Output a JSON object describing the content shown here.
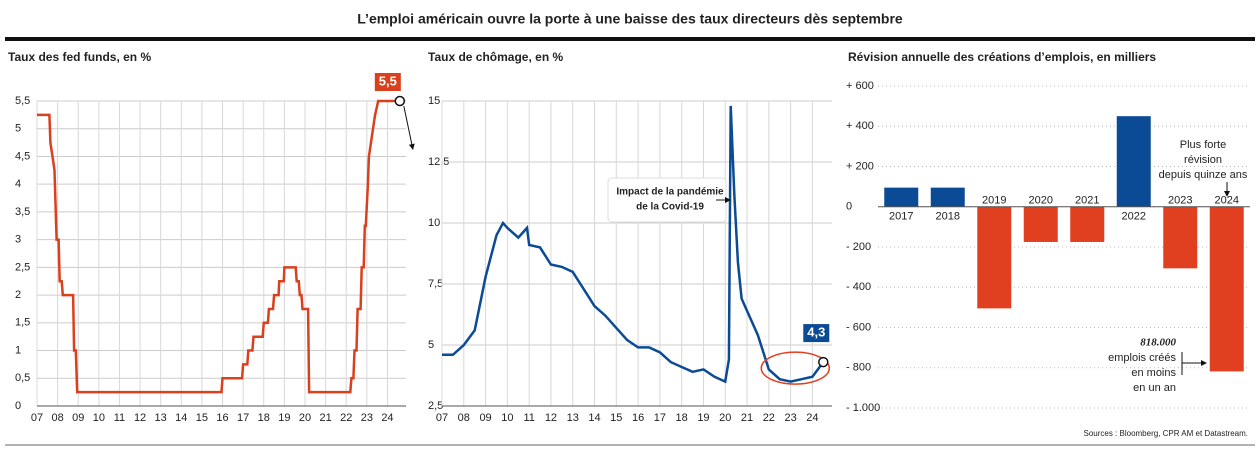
{
  "title": "L’emploi américain ouvre la porte à une baisse des taux directeurs dès septembre",
  "source": "Sources : Bloomberg, CPR AM et Datastream.",
  "chart_data": [
    {
      "type": "line",
      "title": "Taux des fed funds, en %",
      "color": "#d9401e",
      "grid": true,
      "x": [
        2007,
        2007.6,
        2007.65,
        2007.75,
        2007.85,
        2007.95,
        2008.05,
        2008.1,
        2008.2,
        2008.25,
        2008.75,
        2008.8,
        2008.88,
        2008.95,
        2015.95,
        2016.0,
        2016.95,
        2017.0,
        2017.2,
        2017.25,
        2017.45,
        2017.5,
        2017.95,
        2018.0,
        2018.2,
        2018.25,
        2018.45,
        2018.5,
        2018.72,
        2018.75,
        2018.97,
        2019.0,
        2019.55,
        2019.6,
        2019.7,
        2019.75,
        2019.83,
        2019.88,
        2020.15,
        2020.2,
        2022.2,
        2022.25,
        2022.35,
        2022.4,
        2022.5,
        2022.55,
        2022.7,
        2022.75,
        2022.85,
        2022.9,
        2022.95,
        2023.05,
        2023.1,
        2023.2,
        2023.3,
        2023.4,
        2023.55,
        2024.6
      ],
      "values": [
        5.25,
        5.25,
        4.75,
        4.5,
        4.25,
        3,
        3,
        2.25,
        2.25,
        2,
        2,
        1,
        1,
        0.25,
        0.25,
        0.5,
        0.5,
        0.75,
        0.75,
        1,
        1,
        1.25,
        1.25,
        1.5,
        1.5,
        1.75,
        1.75,
        2,
        2,
        2.25,
        2.25,
        2.5,
        2.5,
        2.25,
        2.25,
        2,
        2,
        1.75,
        1.75,
        0.25,
        0.25,
        0.5,
        0.5,
        1,
        1,
        1.75,
        1.75,
        2.5,
        2.5,
        3.25,
        3.25,
        4,
        4.5,
        4.75,
        5,
        5.25,
        5.5,
        5.5
      ],
      "xlim": [
        2007,
        2024.9
      ],
      "ylim": [
        0,
        5.5
      ],
      "xticks": [
        {
          "value": 2007,
          "label": "07"
        },
        {
          "value": 2008,
          "label": "08"
        },
        {
          "value": 2009,
          "label": "09"
        },
        {
          "value": 2010,
          "label": "10"
        },
        {
          "value": 2011,
          "label": "11"
        },
        {
          "value": 2012,
          "label": "12"
        },
        {
          "value": 2013,
          "label": "13"
        },
        {
          "value": 2014,
          "label": "14"
        },
        {
          "value": 2015,
          "label": "15"
        },
        {
          "value": 2016,
          "label": "16"
        },
        {
          "value": 2017,
          "label": "17"
        },
        {
          "value": 2018,
          "label": "18"
        },
        {
          "value": 2019,
          "label": "19"
        },
        {
          "value": 2020,
          "label": "20"
        },
        {
          "value": 2021,
          "label": "21"
        },
        {
          "value": 2022,
          "label": "22"
        },
        {
          "value": 2023,
          "label": "23"
        },
        {
          "value": 2024,
          "label": "24"
        }
      ],
      "yticks": [
        0,
        {
          "value": 0.5,
          "label": "0,5"
        },
        1,
        {
          "value": 1.5,
          "label": "1,5"
        },
        2,
        {
          "value": 2.5,
          "label": "2,5"
        },
        3,
        {
          "value": 3.5,
          "label": "3,5"
        },
        4,
        {
          "value": 4.5,
          "label": "4,5"
        },
        5,
        {
          "value": 5.5,
          "label": "5,5"
        }
      ],
      "annotations": [
        "5,5"
      ]
    },
    {
      "type": "line",
      "title": "Taux de chômage, en %",
      "color": "#0b4a94",
      "grid": true,
      "x": [
        2007,
        2007.5,
        2008,
        2008.5,
        2009,
        2009.5,
        2009.8,
        2010,
        2010.5,
        2010.9,
        2011,
        2011.5,
        2012,
        2012.5,
        2013,
        2013.5,
        2014,
        2014.5,
        2015,
        2015.5,
        2016,
        2016.5,
        2017,
        2017.5,
        2018,
        2018.5,
        2019,
        2019.5,
        2020,
        2020.17,
        2020.25,
        2020.42,
        2020.58,
        2020.75,
        2021,
        2021.5,
        2022,
        2022.5,
        2023,
        2023.5,
        2024,
        2024.5
      ],
      "values": [
        4.6,
        4.6,
        5.0,
        5.6,
        7.8,
        9.5,
        10.0,
        9.8,
        9.4,
        9.8,
        9.1,
        9.0,
        8.3,
        8.2,
        8.0,
        7.3,
        6.6,
        6.2,
        5.7,
        5.2,
        4.9,
        4.9,
        4.7,
        4.3,
        4.1,
        3.9,
        4.0,
        3.7,
        3.5,
        4.4,
        14.8,
        11.1,
        8.4,
        6.9,
        6.4,
        5.4,
        4.0,
        3.6,
        3.5,
        3.6,
        3.7,
        4.3
      ],
      "xlim": [
        2007,
        2024.9
      ],
      "ylim": [
        2.5,
        15
      ],
      "xticks": [
        {
          "value": 2007,
          "label": "07"
        },
        {
          "value": 2008,
          "label": "08"
        },
        {
          "value": 2009,
          "label": "09"
        },
        {
          "value": 2010,
          "label": "10"
        },
        {
          "value": 2011,
          "label": "11"
        },
        {
          "value": 2012,
          "label": "12"
        },
        {
          "value": 2013,
          "label": "13"
        },
        {
          "value": 2014,
          "label": "14"
        },
        {
          "value": 2015,
          "label": "15"
        },
        {
          "value": 2016,
          "label": "16"
        },
        {
          "value": 2017,
          "label": "17"
        },
        {
          "value": 2018,
          "label": "18"
        },
        {
          "value": 2019,
          "label": "19"
        },
        {
          "value": 2020,
          "label": "20"
        },
        {
          "value": 2021,
          "label": "21"
        },
        {
          "value": 2022,
          "label": "22"
        },
        {
          "value": 2023,
          "label": "23"
        },
        {
          "value": 2024,
          "label": "24"
        }
      ],
      "yticks": [
        {
          "value": 2.5,
          "label": "2,5"
        },
        5,
        {
          "value": 7.5,
          "label": "7,5"
        },
        10,
        {
          "value": 12.5,
          "label": "12,5"
        },
        15
      ],
      "annotations": [
        "Impact de la pandémie",
        "de la Covid-19",
        "4,3"
      ]
    },
    {
      "type": "bar",
      "title": "Révision annuelle des créations d’emplois, en milliers",
      "grid": true,
      "categories": [
        "2017",
        "2018",
        "2019",
        "2020",
        "2021",
        "2022",
        "2023",
        "2024"
      ],
      "values": [
        95,
        95,
        -505,
        -175,
        -175,
        450,
        -306,
        -818
      ],
      "colors": [
        "#0b4a94",
        "#0b4a94",
        "#e0401f",
        "#e0401f",
        "#e0401f",
        "#0b4a94",
        "#e0401f",
        "#e0401f"
      ],
      "ylim": [
        -1000,
        600
      ],
      "yticks": [
        {
          "value": 600,
          "label": "+ 600"
        },
        {
          "value": 400,
          "label": "+ 400"
        },
        {
          "value": 200,
          "label": "+ 200"
        },
        0,
        {
          "value": -200,
          "label": "- 200"
        },
        {
          "value": -400,
          "label": "- 400"
        },
        {
          "value": -600,
          "label": "- 600"
        },
        {
          "value": -800,
          "label": "- 800"
        },
        {
          "value": -1000,
          "label": "- 1.000"
        }
      ],
      "annotations": [
        "Plus forte",
        "révision",
        "depuis quinze ans",
        "818.000",
        "emplois créés",
        "en moins",
        "en un an"
      ]
    }
  ]
}
